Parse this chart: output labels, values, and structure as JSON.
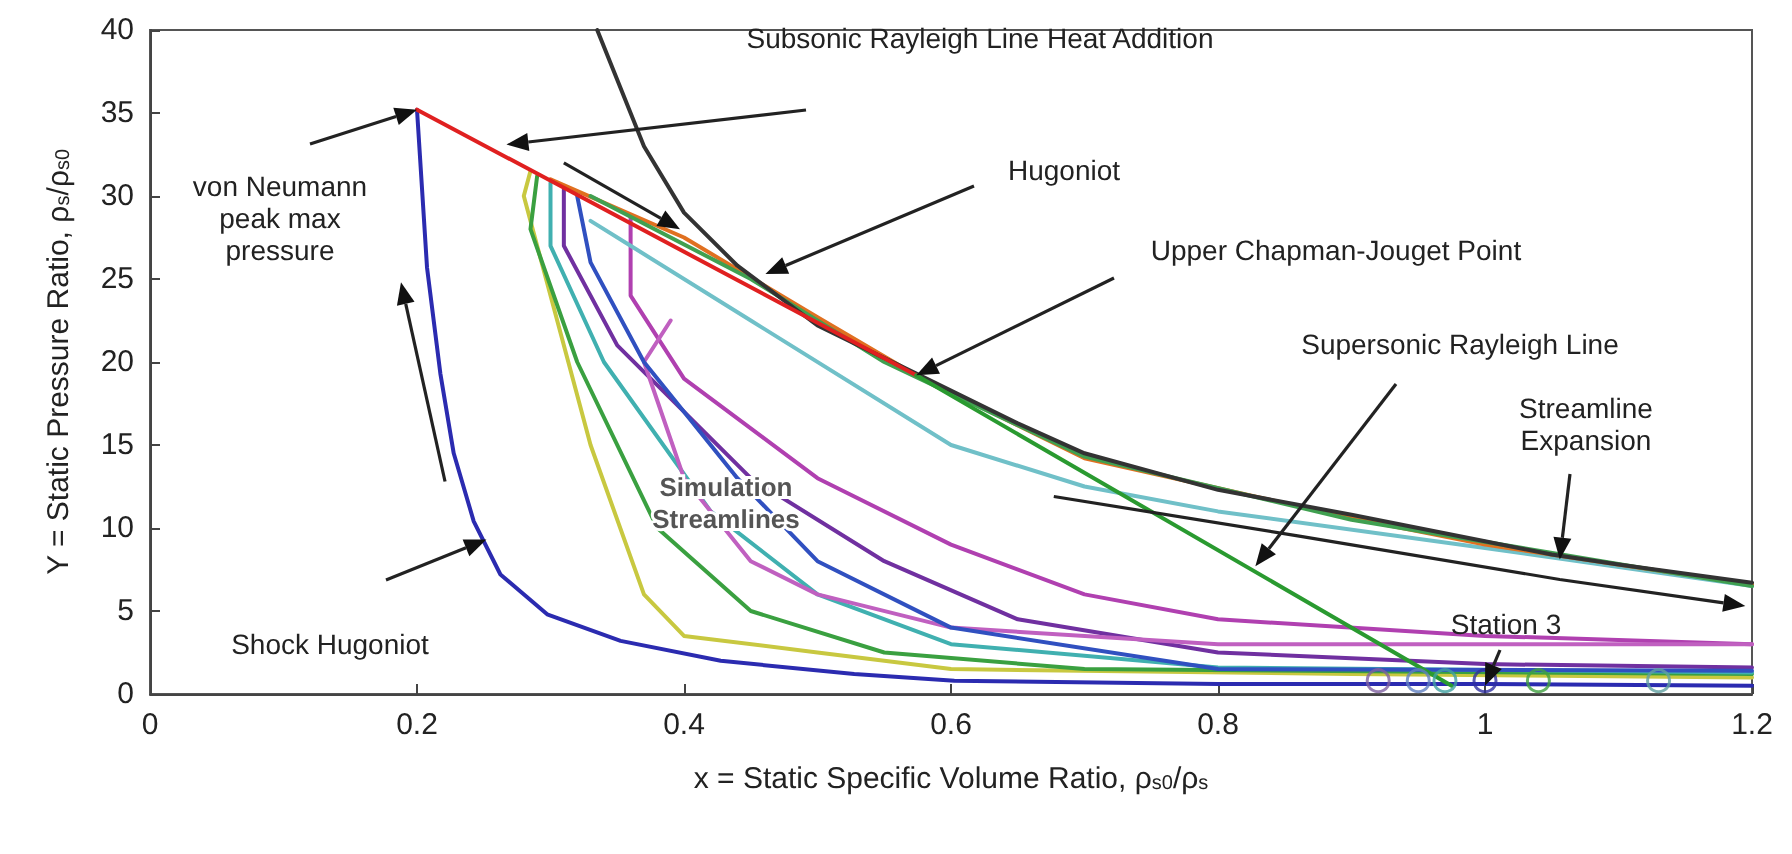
{
  "chart_data": {
    "type": "line",
    "xlabel": "x = Static Specific Volume Ratio, ρ$_{s0}$/ρ$_{s}$",
    "ylabel": "Y = Static Pressure Ratio, ρ$_{s}$/ρ$_{s0}$",
    "xlim": [
      0,
      1.2
    ],
    "xticks": [
      0,
      0.2,
      0.4,
      0.6,
      0.8,
      1,
      1.2
    ],
    "ylim": [
      0,
      40
    ],
    "yticks": [
      0,
      5,
      10,
      15,
      20,
      25,
      30,
      35,
      40
    ],
    "grid": false,
    "marker": "none",
    "line_style": "solid",
    "series": [
      {
        "color": "#c8c840",
        "x": [
          0.285,
          0.28,
          0.3,
          0.33,
          0.37,
          0.4,
          0.5,
          0.6,
          0.9,
          1.2
        ],
        "values": [
          31.5,
          30,
          24,
          15,
          6,
          3.5,
          2.5,
          1.5,
          1.2,
          1.0
        ]
      },
      {
        "color": "#3aa040",
        "x": [
          0.29,
          0.285,
          0.32,
          0.38,
          0.45,
          0.55,
          0.7,
          1.2
        ],
        "values": [
          31.2,
          28,
          20,
          10,
          5,
          2.5,
          1.5,
          1.2
        ]
      },
      {
        "color": "#40b0b0",
        "x": [
          0.3,
          0.3,
          0.34,
          0.42,
          0.5,
          0.6,
          0.8,
          1.2
        ],
        "values": [
          30.8,
          27,
          20,
          11,
          6,
          3,
          1.6,
          1.3
        ]
      },
      {
        "color": "#7030a0",
        "x": [
          0.31,
          0.31,
          0.35,
          0.45,
          0.55,
          0.65,
          0.8,
          1.0,
          1.2
        ],
        "values": [
          30.4,
          27,
          21,
          13,
          8,
          4.5,
          2.5,
          1.8,
          1.6
        ]
      },
      {
        "color": "#b040b0",
        "x": [
          0.36,
          0.36,
          0.4,
          0.5,
          0.6,
          0.7,
          0.8,
          1.0,
          1.2
        ],
        "values": [
          28.8,
          24,
          19,
          13,
          9,
          6,
          4.5,
          3.5,
          3.0
        ]
      },
      {
        "color": "#c060c0",
        "x": [
          0.39,
          0.37,
          0.4,
          0.45,
          0.5,
          0.6,
          0.8,
          1.2
        ],
        "values": [
          22.5,
          20,
          13,
          8,
          6,
          4,
          3,
          3
        ]
      },
      {
        "color": "#3050c0",
        "x": [
          0.32,
          0.33,
          0.37,
          0.44,
          0.5,
          0.6,
          0.8,
          1.2
        ],
        "values": [
          30,
          26,
          20,
          13,
          8,
          4,
          1.5,
          1.4
        ]
      },
      {
        "color": "#70c0c8",
        "x": [
          0.33,
          0.36,
          0.45,
          0.6,
          0.7,
          0.8,
          1.0,
          1.2
        ],
        "values": [
          28.5,
          27,
          22.5,
          15,
          12.5,
          11,
          8.8,
          6.5
        ]
      },
      {
        "color": "#e07020",
        "x": [
          0.3,
          0.4,
          0.5,
          0.574,
          0.7,
          0.9,
          1.0,
          1.2
        ],
        "values": [
          31,
          27.5,
          22.7,
          19.2,
          14.2,
          10.6,
          9.0,
          6.6
        ]
      },
      {
        "color": "#40a050",
        "x": [
          0.33,
          0.45,
          0.55,
          0.7,
          0.9,
          1.2
        ],
        "values": [
          30,
          25,
          20,
          14.3,
          10.5,
          6.5
        ]
      },
      {
        "color": "#2b2bb0",
        "x": [
          0.2,
          0.2075,
          0.2175,
          0.2275,
          0.2425,
          0.2625,
          0.2975,
          0.3525,
          0.4275,
          0.5275,
          0.6025,
          0.8,
          1.0,
          1.2
        ],
        "values": [
          35.2,
          25.7,
          19.3,
          14.5,
          10.4,
          7.2,
          4.8,
          3.2,
          2.0,
          1.2,
          0.8,
          0.6,
          0.6,
          0.5
        ]
      },
      {
        "color": "#333333",
        "x": [
          0.335,
          0.37,
          0.4,
          0.44,
          0.5,
          0.574,
          0.65,
          0.7,
          0.8,
          0.9,
          1.0,
          1.05,
          1.1,
          1.2
        ],
        "values": [
          40,
          33,
          29,
          25.8,
          22.2,
          19.3,
          16.3,
          14.5,
          12.3,
          10.8,
          9.2,
          8.4,
          7.8,
          6.7
        ]
      },
      {
        "color": "#e02020",
        "x": [
          0.2,
          0.574
        ],
        "values": [
          35.2,
          19.2
        ]
      },
      {
        "color": "#2a9a30",
        "x": [
          0.574,
          0.975
        ],
        "values": [
          19.2,
          0.5
        ]
      },
      {
        "type": "scatter",
        "marker": "circle",
        "x": [
          0.92,
          0.95,
          0.97,
          1.0,
          1.04,
          1.13
        ],
        "values": [
          0.8,
          0.8,
          0.8,
          0.8,
          0.8,
          0.8
        ],
        "colors": [
          "#8060a0",
          "#6080c0",
          "#40a0a0",
          "#3030a0",
          "#40a040",
          "#60a0a0"
        ]
      }
    ],
    "annotations": [
      "Subsonic Rayleigh Line Heat Addition",
      "von Neumann peak max pressure",
      "Hugoniot",
      "Upper Chapman-Jouget Point",
      "Supersonic Rayleigh Line",
      "Streamline Expansion",
      "Station 3",
      "Shock Hugoniot",
      "Simulation Streamlines"
    ]
  }
}
